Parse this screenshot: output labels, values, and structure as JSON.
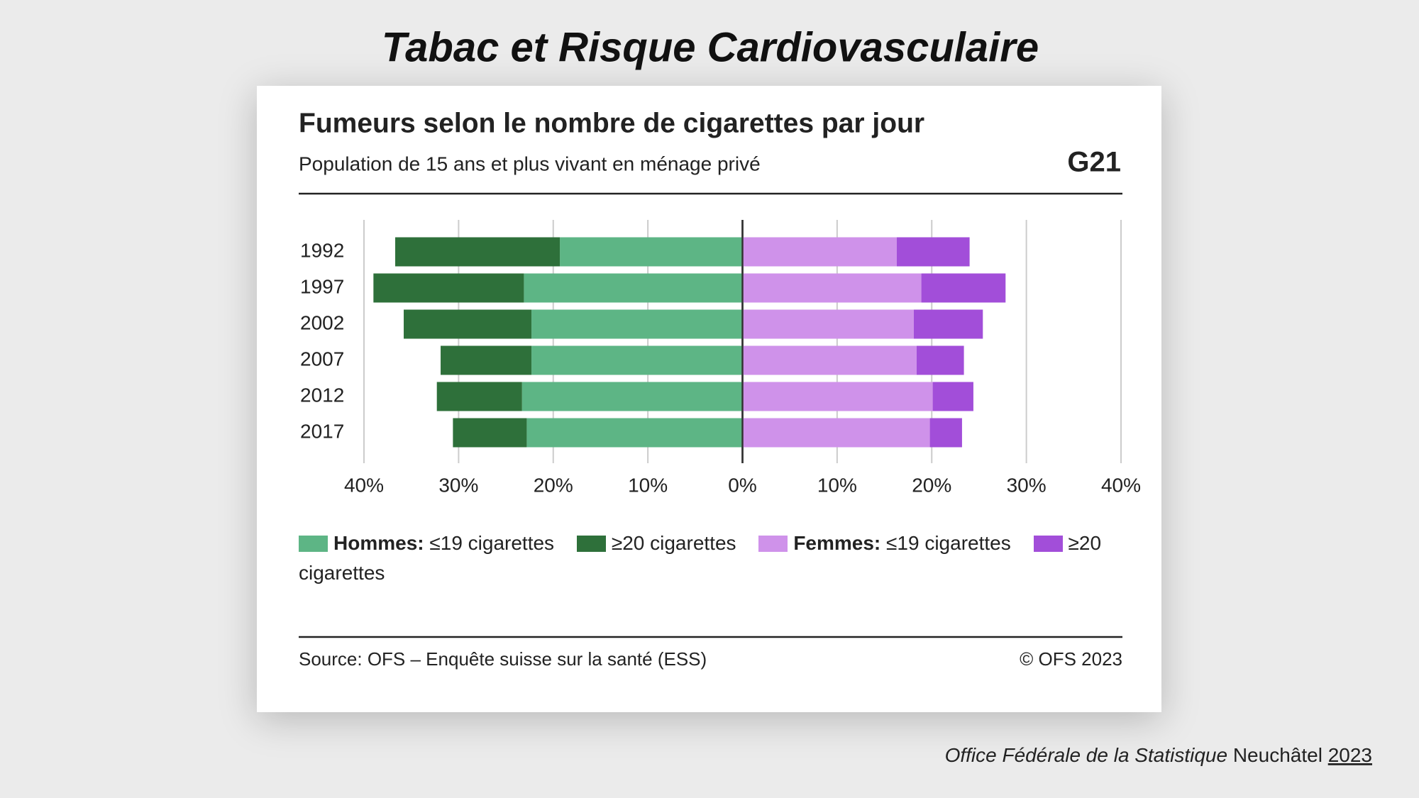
{
  "title": "Tabac et Risque Cardiovasculaire",
  "chart_data": {
    "type": "bar",
    "orientation": "horizontal",
    "stacked": true,
    "title": "Fumeurs selon le nombre de cigarettes par jour",
    "subtitle": "Population de 15 ans et plus vivant en ménage privé",
    "code": "G21",
    "categories": [
      "1992",
      "1997",
      "2002",
      "2007",
      "2012",
      "2017"
    ],
    "series": [
      {
        "group": "Hommes:",
        "name": "≤19 cigarettes",
        "color": "#5db585",
        "values": [
          -19.3,
          -23.1,
          -22.3,
          -22.3,
          -23.3,
          -22.8
        ]
      },
      {
        "name": "≥20 cigarettes",
        "color": "#2e703a",
        "values": [
          -17.4,
          -15.9,
          -13.5,
          -9.6,
          -9.0,
          -7.8
        ]
      },
      {
        "group": "Femmes:",
        "name": "≤19 cigarettes",
        "color": "#cf92ea",
        "values": [
          16.3,
          18.9,
          18.1,
          18.4,
          20.1,
          19.8
        ]
      },
      {
        "name": "≥20 cigarettes",
        "color": "#a24ed9",
        "values": [
          7.7,
          8.9,
          7.3,
          5.0,
          4.3,
          3.4
        ]
      }
    ],
    "xlim": [
      -40,
      40
    ],
    "xticks": [
      {
        "value": -40,
        "label": "40%"
      },
      {
        "value": -30,
        "label": "30%"
      },
      {
        "value": -20,
        "label": "20%"
      },
      {
        "value": -10,
        "label": "10%"
      },
      {
        "value": 0,
        "label": "0%"
      },
      {
        "value": 10,
        "label": "10%"
      },
      {
        "value": 20,
        "label": "20%"
      },
      {
        "value": 30,
        "label": "30%"
      },
      {
        "value": 40,
        "label": "40%"
      }
    ],
    "grid": true,
    "source": "Source: OFS – Enquête suisse sur la santé (ESS)",
    "copyright": "© OFS 2023"
  },
  "footer": {
    "organisation": "Office Fédérale de la Statistique",
    "place": "Neuchâtel",
    "year": "2023"
  }
}
